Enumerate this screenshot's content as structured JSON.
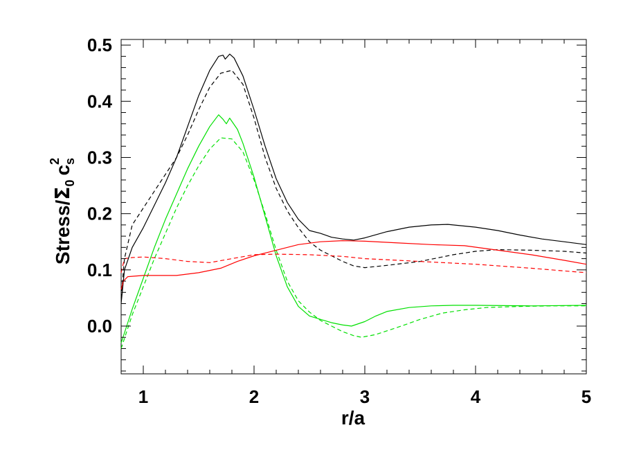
{
  "chart_data": {
    "type": "line",
    "xlabel": "r/a",
    "ylabel": "Stress/Σ₀ cₛ²",
    "ylabel_parts": {
      "main": "Stress/",
      "sigma": "Σ",
      "sigma_sub": "0",
      "c": "c",
      "c_sub": "s",
      "c_sup": "2"
    },
    "xlim": [
      0.8,
      5
    ],
    "ylim": [
      -0.085,
      0.51
    ],
    "x_ticks": [
      1,
      2,
      3,
      4,
      5
    ],
    "x_tick_labels": [
      "1",
      "2",
      "3",
      "4",
      "5"
    ],
    "y_ticks": [
      0.0,
      0.1,
      0.2,
      0.3,
      0.4,
      0.5
    ],
    "y_tick_labels": [
      "0.0",
      "0.1",
      "0.2",
      "0.3",
      "0.4",
      "0.5"
    ],
    "grid": false,
    "series": [
      {
        "color": "#000000",
        "style": "solid",
        "points": [
          [
            0.8,
            0.04
          ],
          [
            0.83,
            0.1
          ],
          [
            0.9,
            0.14
          ],
          [
            1.0,
            0.175
          ],
          [
            1.1,
            0.215
          ],
          [
            1.2,
            0.255
          ],
          [
            1.3,
            0.3
          ],
          [
            1.4,
            0.355
          ],
          [
            1.5,
            0.41
          ],
          [
            1.6,
            0.455
          ],
          [
            1.68,
            0.48
          ],
          [
            1.72,
            0.482
          ],
          [
            1.74,
            0.475
          ],
          [
            1.78,
            0.484
          ],
          [
            1.82,
            0.477
          ],
          [
            1.9,
            0.445
          ],
          [
            2.0,
            0.385
          ],
          [
            2.1,
            0.32
          ],
          [
            2.2,
            0.262
          ],
          [
            2.3,
            0.22
          ],
          [
            2.4,
            0.19
          ],
          [
            2.5,
            0.17
          ],
          [
            2.6,
            0.165
          ],
          [
            2.7,
            0.158
          ],
          [
            2.8,
            0.155
          ],
          [
            2.9,
            0.153
          ],
          [
            3.0,
            0.157
          ],
          [
            3.2,
            0.168
          ],
          [
            3.4,
            0.176
          ],
          [
            3.6,
            0.18
          ],
          [
            3.75,
            0.181
          ],
          [
            4.0,
            0.176
          ],
          [
            4.2,
            0.17
          ],
          [
            4.4,
            0.162
          ],
          [
            4.6,
            0.155
          ],
          [
            4.8,
            0.15
          ],
          [
            5.0,
            0.145
          ]
        ]
      },
      {
        "color": "#000000",
        "style": "dashed",
        "points": [
          [
            0.8,
            0.05
          ],
          [
            0.83,
            0.12
          ],
          [
            0.9,
            0.18
          ],
          [
            1.0,
            0.21
          ],
          [
            1.1,
            0.24
          ],
          [
            1.2,
            0.27
          ],
          [
            1.3,
            0.3
          ],
          [
            1.4,
            0.34
          ],
          [
            1.5,
            0.385
          ],
          [
            1.6,
            0.425
          ],
          [
            1.7,
            0.45
          ],
          [
            1.8,
            0.455
          ],
          [
            1.9,
            0.43
          ],
          [
            2.0,
            0.37
          ],
          [
            2.1,
            0.3
          ],
          [
            2.2,
            0.245
          ],
          [
            2.3,
            0.205
          ],
          [
            2.4,
            0.175
          ],
          [
            2.5,
            0.15
          ],
          [
            2.6,
            0.135
          ],
          [
            2.7,
            0.125
          ],
          [
            2.8,
            0.115
          ],
          [
            2.9,
            0.107
          ],
          [
            3.0,
            0.104
          ],
          [
            3.2,
            0.108
          ],
          [
            3.5,
            0.115
          ],
          [
            3.8,
            0.127
          ],
          [
            4.0,
            0.133
          ],
          [
            4.2,
            0.136
          ],
          [
            4.5,
            0.135
          ],
          [
            4.8,
            0.133
          ],
          [
            5.0,
            0.13
          ]
        ]
      },
      {
        "color": "#00e000",
        "style": "solid",
        "points": [
          [
            0.8,
            -0.03
          ],
          [
            0.85,
            0.0
          ],
          [
            0.9,
            0.03
          ],
          [
            1.0,
            0.085
          ],
          [
            1.1,
            0.14
          ],
          [
            1.2,
            0.19
          ],
          [
            1.3,
            0.235
          ],
          [
            1.4,
            0.28
          ],
          [
            1.5,
            0.32
          ],
          [
            1.6,
            0.355
          ],
          [
            1.68,
            0.376
          ],
          [
            1.72,
            0.368
          ],
          [
            1.75,
            0.36
          ],
          [
            1.78,
            0.37
          ],
          [
            1.85,
            0.35
          ],
          [
            1.9,
            0.325
          ],
          [
            2.0,
            0.265
          ],
          [
            2.1,
            0.195
          ],
          [
            2.2,
            0.125
          ],
          [
            2.3,
            0.07
          ],
          [
            2.4,
            0.035
          ],
          [
            2.5,
            0.018
          ],
          [
            2.6,
            0.012
          ],
          [
            2.7,
            0.006
          ],
          [
            2.8,
            0.002
          ],
          [
            2.88,
            0.0
          ],
          [
            3.0,
            0.008
          ],
          [
            3.1,
            0.018
          ],
          [
            3.2,
            0.026
          ],
          [
            3.4,
            0.033
          ],
          [
            3.6,
            0.036
          ],
          [
            3.8,
            0.037
          ],
          [
            4.0,
            0.037
          ],
          [
            4.5,
            0.036
          ],
          [
            5.0,
            0.037
          ]
        ]
      },
      {
        "color": "#00e000",
        "style": "dashed",
        "points": [
          [
            0.8,
            -0.04
          ],
          [
            0.85,
            -0.01
          ],
          [
            0.9,
            0.02
          ],
          [
            1.0,
            0.07
          ],
          [
            1.1,
            0.12
          ],
          [
            1.2,
            0.165
          ],
          [
            1.3,
            0.21
          ],
          [
            1.4,
            0.25
          ],
          [
            1.5,
            0.285
          ],
          [
            1.6,
            0.315
          ],
          [
            1.7,
            0.335
          ],
          [
            1.8,
            0.333
          ],
          [
            1.9,
            0.31
          ],
          [
            2.0,
            0.26
          ],
          [
            2.1,
            0.2
          ],
          [
            2.2,
            0.135
          ],
          [
            2.3,
            0.08
          ],
          [
            2.4,
            0.045
          ],
          [
            2.5,
            0.025
          ],
          [
            2.6,
            0.01
          ],
          [
            2.7,
            0.0
          ],
          [
            2.8,
            -0.01
          ],
          [
            2.9,
            -0.017
          ],
          [
            2.97,
            -0.02
          ],
          [
            3.1,
            -0.015
          ],
          [
            3.3,
            -0.002
          ],
          [
            3.5,
            0.012
          ],
          [
            3.7,
            0.023
          ],
          [
            3.9,
            0.029
          ],
          [
            4.1,
            0.033
          ],
          [
            4.4,
            0.035
          ],
          [
            4.7,
            0.036
          ],
          [
            5.0,
            0.036
          ]
        ]
      },
      {
        "color": "#ff0000",
        "style": "solid",
        "points": [
          [
            0.8,
            0.065
          ],
          [
            0.82,
            0.08
          ],
          [
            0.86,
            0.088
          ],
          [
            1.0,
            0.09
          ],
          [
            1.3,
            0.09
          ],
          [
            1.5,
            0.095
          ],
          [
            1.7,
            0.103
          ],
          [
            1.85,
            0.115
          ],
          [
            2.0,
            0.125
          ],
          [
            2.2,
            0.135
          ],
          [
            2.4,
            0.145
          ],
          [
            2.6,
            0.15
          ],
          [
            2.8,
            0.152
          ],
          [
            3.0,
            0.151
          ],
          [
            3.3,
            0.148
          ],
          [
            3.6,
            0.145
          ],
          [
            3.9,
            0.143
          ],
          [
            4.2,
            0.135
          ],
          [
            4.5,
            0.127
          ],
          [
            4.8,
            0.117
          ],
          [
            5.0,
            0.11
          ]
        ]
      },
      {
        "color": "#ff0000",
        "style": "dashed",
        "points": [
          [
            0.8,
            0.095
          ],
          [
            0.83,
            0.12
          ],
          [
            0.9,
            0.122
          ],
          [
            1.0,
            0.123
          ],
          [
            1.2,
            0.12
          ],
          [
            1.4,
            0.115
          ],
          [
            1.6,
            0.113
          ],
          [
            1.8,
            0.12
          ],
          [
            2.0,
            0.127
          ],
          [
            2.2,
            0.128
          ],
          [
            2.5,
            0.127
          ],
          [
            2.8,
            0.124
          ],
          [
            3.0,
            0.12
          ],
          [
            3.3,
            0.117
          ],
          [
            3.6,
            0.114
          ],
          [
            4.0,
            0.11
          ],
          [
            4.5,
            0.103
          ],
          [
            5.0,
            0.095
          ]
        ]
      }
    ]
  }
}
